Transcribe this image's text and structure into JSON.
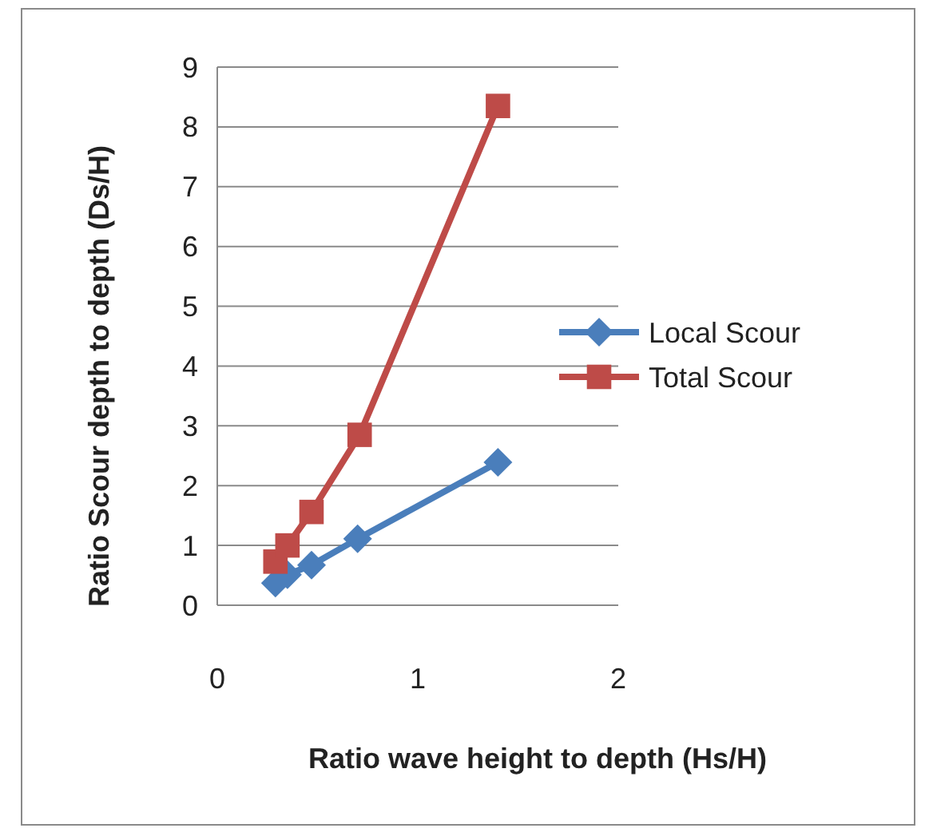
{
  "chart_data": {
    "type": "line",
    "xlabel": "Ratio wave height to depth (Hs/H)",
    "ylabel": "Ratio Scour depth to depth (Ds/H)",
    "xlim": [
      0,
      2
    ],
    "xticks": [
      0,
      1,
      2
    ],
    "ylim": [
      0,
      9
    ],
    "yticks": [
      0,
      1,
      2,
      3,
      4,
      5,
      6,
      7,
      8,
      9
    ],
    "grid": "y",
    "legend": "right",
    "line_style": "solid",
    "series": [
      {
        "name": "Local Scour",
        "color": "#4a7ebb",
        "marker": "diamond",
        "x": [
          0.29,
          0.35,
          0.47,
          0.7,
          1.4
        ],
        "values": [
          0.37,
          0.51,
          0.67,
          1.11,
          2.39
        ]
      },
      {
        "name": "Total Scour",
        "color": "#be4b48",
        "marker": "square",
        "x": [
          0.29,
          0.35,
          0.47,
          0.71,
          1.4
        ],
        "values": [
          0.73,
          1.0,
          1.56,
          2.85,
          8.35
        ]
      }
    ]
  }
}
